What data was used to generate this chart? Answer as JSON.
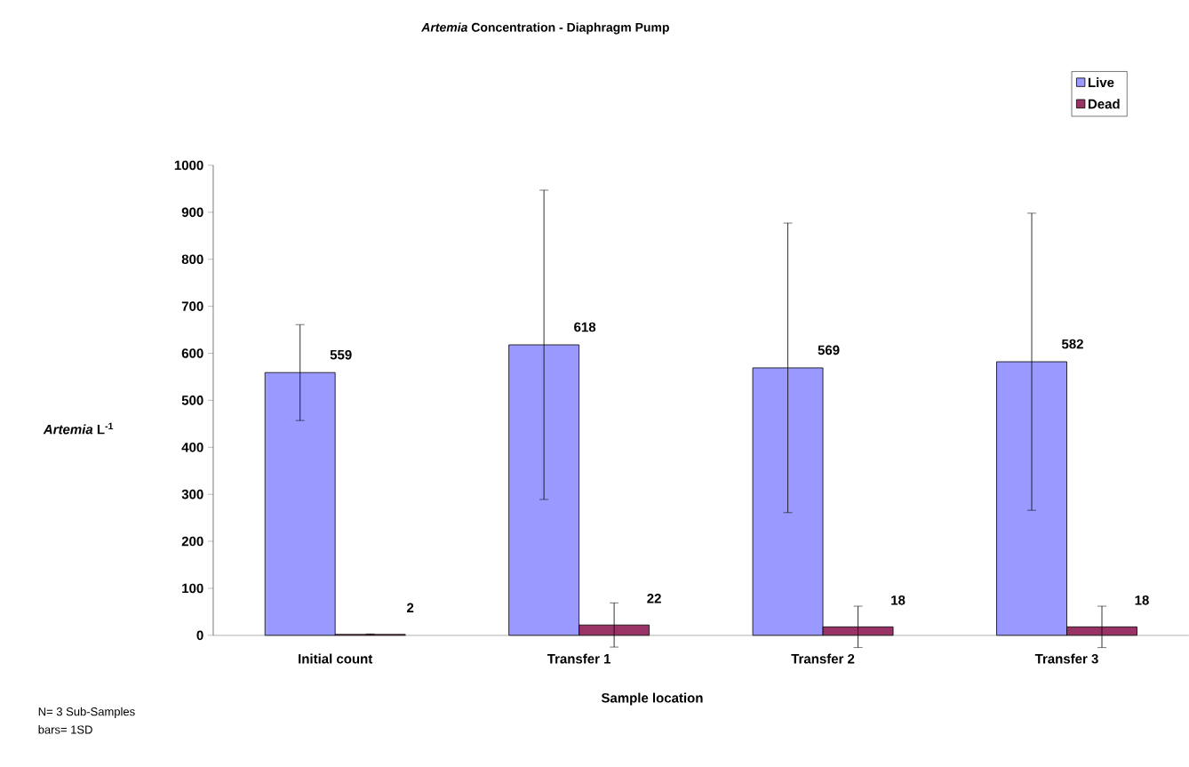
{
  "chart_data": {
    "type": "bar",
    "title": "*Artemia* Concentration - Diaphragm Pump",
    "xlabel": "Sample location",
    "ylabel": "*Artemia* L$^{-1}$",
    "categories": [
      "Initial count",
      "Transfer 1",
      "Transfer 2",
      "Transfer 3"
    ],
    "series": [
      {
        "name": "Live",
        "color": "#9999ff",
        "values": [
          559,
          618,
          569,
          582
        ],
        "errors": [
          102,
          329,
          308,
          316
        ]
      },
      {
        "name": "Dead",
        "color": "#993366",
        "values": [
          2,
          22,
          18,
          18
        ],
        "errors": [
          1,
          47,
          44,
          44
        ]
      }
    ],
    "ylim": [
      0,
      1000
    ],
    "yticks": [
      0,
      100,
      200,
      300,
      400,
      500,
      600,
      700,
      800,
      900,
      1000
    ],
    "data_labels": true,
    "legend": "top right",
    "grid": false,
    "annotations": [
      "N= 3 Sub-Samples",
      "bars= 1SD"
    ]
  }
}
